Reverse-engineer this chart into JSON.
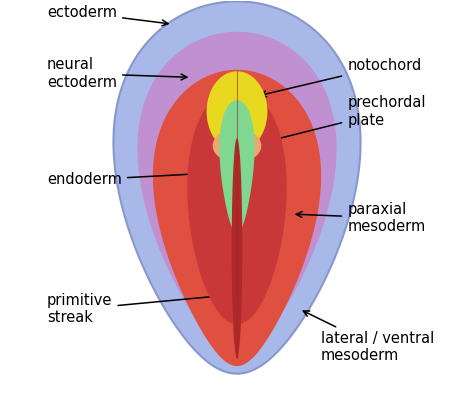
{
  "bg_color": "#ffffff",
  "ectoderm_color": "#a8b8e8",
  "purple_inner_color": "#c090d0",
  "mesoderm_color": "#e05040",
  "paraxial_color": "#c83838",
  "notochord_color": "#e8d820",
  "prechordal_color": "#e8a870",
  "endoderm_color": "#80d890",
  "primitive_streak_color": "#b02828",
  "labels": {
    "ectoderm": "ectoderm",
    "neural_ectoderm": "neural\nectoderm",
    "notochord": "notochord",
    "prechordal": "prechordal\nplate",
    "endoderm": "endoderm",
    "paraxial": "paraxial\nmesoderm",
    "primitive": "primitive\nstreak",
    "lateral": "lateral / ventral\nmesoderm"
  },
  "fontsize": 10.5
}
